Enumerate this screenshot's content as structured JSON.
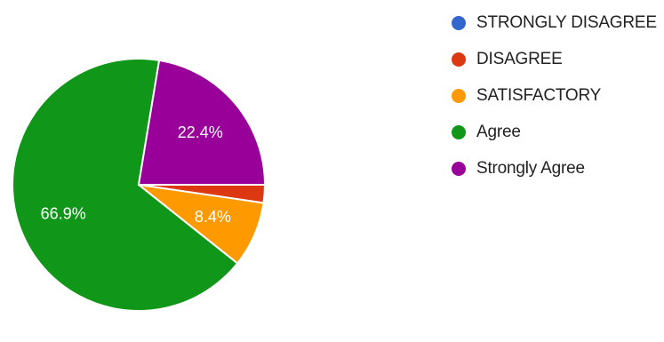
{
  "chart_data": {
    "type": "pie",
    "title": "",
    "slices": [
      {
        "label": "STRONGLY DISAGREE",
        "value": 0.0,
        "color": "#3366cc",
        "value_label": ""
      },
      {
        "label": "DISAGREE",
        "value": 2.3,
        "color": "#dc3912",
        "value_label": ""
      },
      {
        "label": "SATISFACTORY",
        "value": 8.4,
        "color": "#ff9900",
        "value_label": "8.4%"
      },
      {
        "label": "Agree",
        "value": 66.9,
        "color": "#109618",
        "value_label": "66.9%"
      },
      {
        "label": "Strongly Agree",
        "value": 22.4,
        "color": "#990099",
        "value_label": "22.4%"
      }
    ],
    "legend_position": "right",
    "start_angle": "3 o'clock",
    "direction": "clockwise"
  }
}
